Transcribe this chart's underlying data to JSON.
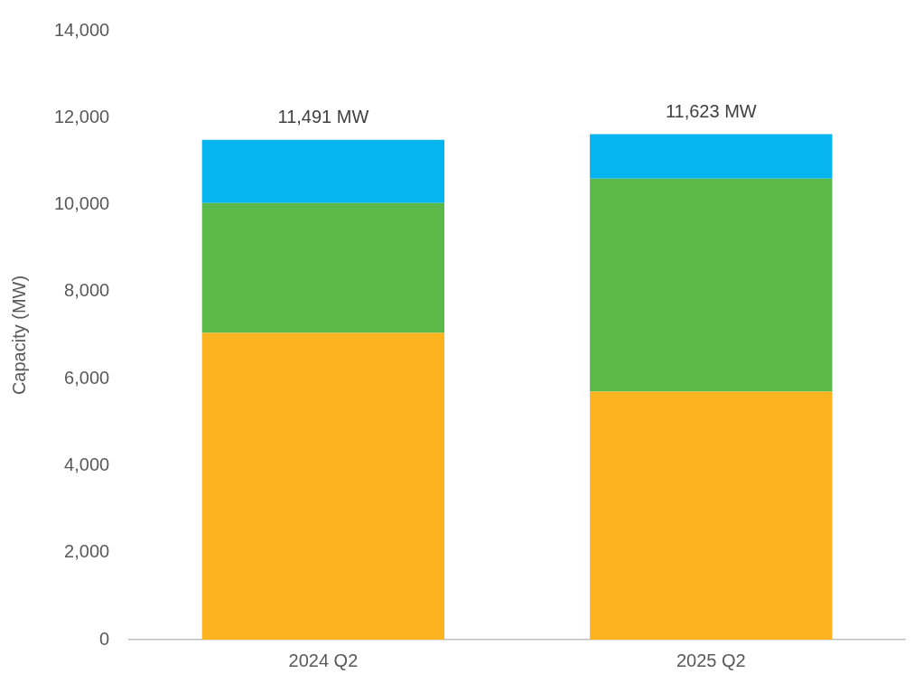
{
  "chart_data": {
    "type": "bar",
    "stacked": true,
    "ylabel": "Capacity (MW)",
    "categories": [
      "2024 Q2",
      "2025 Q2"
    ],
    "series": [
      {
        "color": "#fbb41f",
        "values": [
          7050,
          5700
        ]
      },
      {
        "color": "#5bb94a",
        "values": [
          2990,
          4900
        ]
      },
      {
        "color": "#06b4ef",
        "values": [
          1451,
          1023
        ]
      }
    ],
    "ylim": [
      0,
      14000
    ],
    "yticks": [
      0,
      {
        "value": 2000,
        "label": "2,000"
      },
      {
        "value": 4000,
        "label": "4,000"
      },
      {
        "value": 6000,
        "label": "6,000"
      },
      {
        "value": 8000,
        "label": "8,000"
      },
      {
        "value": 10000,
        "label": "10,000"
      },
      {
        "value": 12000,
        "label": "12,000"
      },
      {
        "value": 14000,
        "label": "14,000"
      }
    ],
    "totals": [
      "11,491 MW",
      "11,623 MW"
    ],
    "grid": false,
    "legend": false
  }
}
